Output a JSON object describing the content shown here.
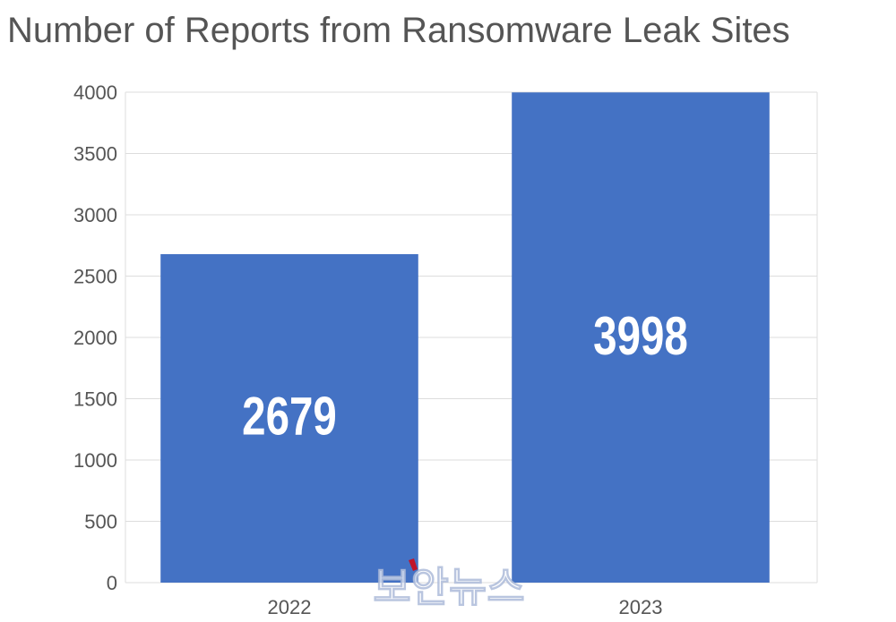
{
  "chart_data": {
    "type": "bar",
    "title": "Number of Reports from Ransomware Leak Sites",
    "xlabel": "",
    "ylabel": "",
    "categories": [
      "2022",
      "2023"
    ],
    "values": [
      2679,
      3998
    ],
    "data_labels": [
      "2679",
      "3998"
    ],
    "ylim": [
      0,
      4000
    ],
    "y_ticks": [
      0,
      500,
      1000,
      1500,
      2000,
      2500,
      3000,
      3500,
      4000
    ],
    "y_tick_labels": [
      "0",
      "500",
      "1000",
      "1500",
      "2000",
      "2500",
      "3000",
      "3500",
      "4000"
    ],
    "grid": true,
    "legend": "none",
    "colors": {
      "bar": "#4472C4",
      "data_label": "#ffffff",
      "grid": "#dddddd",
      "tick_label": "#555555",
      "title": "#555555"
    }
  },
  "watermark": {
    "text": "보안뉴스"
  }
}
